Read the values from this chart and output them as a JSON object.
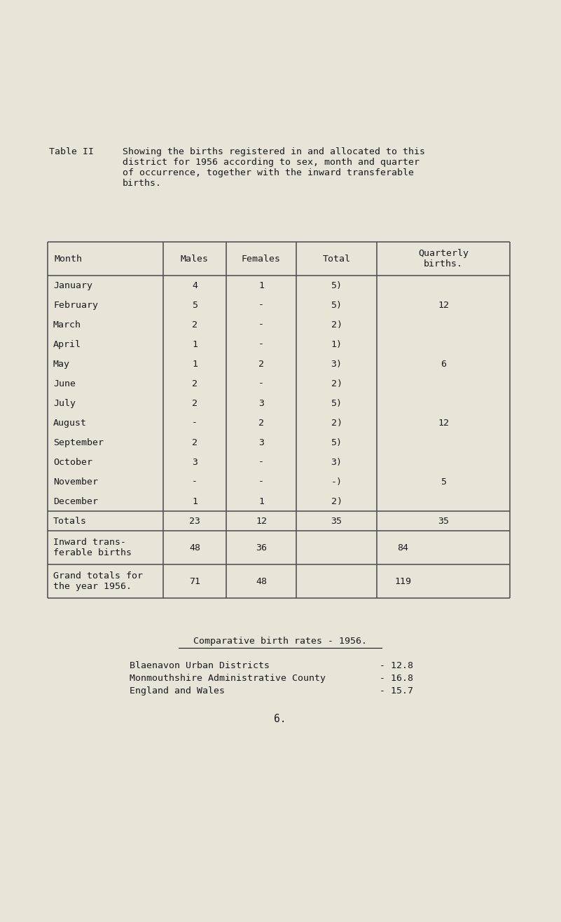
{
  "bg_color": "#e8e4d8",
  "text_color": "#1a1a1a",
  "title_label": "Table II",
  "title_text": "Showing the births registered in and allocated to this\ndistrict for 1956 according to sex, month and quarter\nof occurrence, together with the inward transferable\nbirths.",
  "col_headers": [
    "Month",
    "Males",
    "Females",
    "Total",
    "Quarterly\nbirths."
  ],
  "months": [
    "January",
    "February",
    "March",
    "April",
    "May",
    "June",
    "July",
    "August",
    "September",
    "October",
    "November",
    "December"
  ],
  "males": [
    "4",
    "5",
    "2",
    "1",
    "1",
    "2",
    "2",
    "-",
    "2",
    "3",
    "-",
    "1"
  ],
  "females": [
    "1",
    "-",
    "-",
    "-",
    "2",
    "-",
    "3",
    "2",
    "3",
    "-",
    "-",
    "1"
  ],
  "totals": [
    "5)",
    "5)",
    "2)",
    "1)",
    "3)",
    "2)",
    "5)",
    "2)",
    "5)",
    "3)",
    "-)",
    "2)"
  ],
  "quarterly": [
    [
      "February",
      "12"
    ],
    [
      "May",
      "6"
    ],
    [
      "August",
      "12"
    ],
    [
      "November",
      "5"
    ]
  ],
  "totals_row": [
    "Totals",
    "23",
    "12",
    "35",
    "35"
  ],
  "inward_row": [
    "Inward trans-\nferable births",
    "48",
    "36",
    "84",
    ""
  ],
  "grand_row": [
    "Grand totals for\nthe year 1956.",
    "71",
    "48",
    "119",
    ""
  ],
  "comp_title": "Comparative birth rates - 1956.",
  "comp_rows": [
    [
      "Blaenavon Urban Districts",
      "- 12.8"
    ],
    [
      "Monmouthshire Administrative County",
      "- 16.8"
    ],
    [
      "England and Wales",
      "- 15.7"
    ]
  ],
  "page_num": "6.",
  "font_family": "monospace",
  "font_size": 9.5
}
